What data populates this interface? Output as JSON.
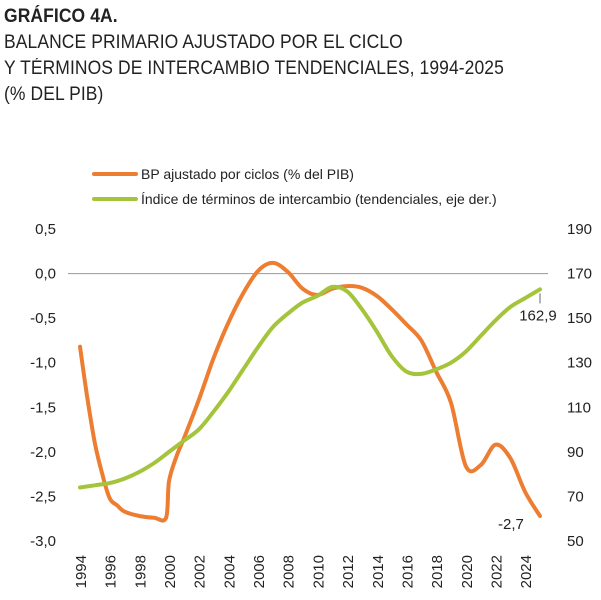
{
  "header": {
    "line1": "GRÁFICO 4A.",
    "line2": "BALANCE PRIMARIO AJUSTADO POR EL CICLO",
    "line3": "Y TÉRMINOS DE INTERCAMBIO TENDENCIALES, 1994-2025",
    "line4": "(% DEL PIB)"
  },
  "chart_data": {
    "type": "line",
    "title": "BALANCE PRIMARIO AJUSTADO POR EL CICLO Y TÉRMINOS DE INTERCAMBIO TENDENCIALES, 1994-2025 (% DEL PIB)",
    "x_ticks": [
      "1994",
      "1996",
      "1998",
      "2000",
      "2002",
      "2004",
      "2006",
      "2008",
      "2010",
      "2012",
      "2014",
      "2016",
      "2018",
      "2020",
      "2022",
      "2024"
    ],
    "y_left": {
      "range": [
        -3.0,
        0.5
      ],
      "ticks": [
        "0,5",
        "0,0",
        "-0,5",
        "-1,0",
        "-1,5",
        "-2,0",
        "-2,5",
        "-3,0"
      ],
      "values": [
        0.5,
        0,
        -0.5,
        -1,
        -1.5,
        -2,
        -2.5,
        -3
      ]
    },
    "y_right": {
      "range": [
        50,
        190
      ],
      "ticks": [
        "190",
        "170",
        "150",
        "130",
        "110",
        "90",
        "70",
        "50"
      ],
      "values": [
        190,
        170,
        150,
        130,
        110,
        90,
        70,
        50
      ]
    },
    "legend_position": "top",
    "grid": false,
    "series": [
      {
        "name": "BP ajustado por ciclos (% del PIB)",
        "axis": "left",
        "color": "#ED7D31",
        "points": [
          [
            1994.0,
            -0.82
          ],
          [
            1994.5,
            -1.4
          ],
          [
            1995.0,
            -1.9
          ],
          [
            1995.5,
            -2.25
          ],
          [
            1996.0,
            -2.52
          ],
          [
            1996.5,
            -2.6
          ],
          [
            1997.0,
            -2.67
          ],
          [
            1998.0,
            -2.72
          ],
          [
            1999.0,
            -2.74
          ],
          [
            1999.8,
            -2.74
          ],
          [
            2000.0,
            -2.33
          ],
          [
            2000.5,
            -2.05
          ],
          [
            2001.0,
            -1.85
          ],
          [
            2002.0,
            -1.42
          ],
          [
            2003.0,
            -0.95
          ],
          [
            2004.0,
            -0.55
          ],
          [
            2005.0,
            -0.22
          ],
          [
            2006.0,
            0.03
          ],
          [
            2007.0,
            0.12
          ],
          [
            2008.0,
            0.02
          ],
          [
            2009.0,
            -0.17
          ],
          [
            2010.0,
            -0.24
          ],
          [
            2011.0,
            -0.17
          ],
          [
            2012.0,
            -0.14
          ],
          [
            2013.0,
            -0.16
          ],
          [
            2014.0,
            -0.25
          ],
          [
            2015.0,
            -0.4
          ],
          [
            2016.0,
            -0.57
          ],
          [
            2017.0,
            -0.75
          ],
          [
            2018.0,
            -1.1
          ],
          [
            2019.0,
            -1.45
          ],
          [
            2020.0,
            -2.16
          ],
          [
            2021.0,
            -2.15
          ],
          [
            2022.0,
            -1.92
          ],
          [
            2023.0,
            -2.07
          ],
          [
            2024.0,
            -2.45
          ],
          [
            2025.0,
            -2.72
          ]
        ]
      },
      {
        "name": "Índice de términos de intercambio (tendenciales, eje der.)",
        "axis": "right",
        "color": "#A4C43C",
        "points": [
          [
            1994,
            74
          ],
          [
            1995,
            75
          ],
          [
            1996,
            76
          ],
          [
            1997,
            78
          ],
          [
            1998,
            81
          ],
          [
            1999,
            85
          ],
          [
            2000,
            90
          ],
          [
            2001,
            95
          ],
          [
            2002,
            100
          ],
          [
            2003,
            108
          ],
          [
            2004,
            117
          ],
          [
            2005,
            127
          ],
          [
            2006,
            137
          ],
          [
            2007,
            146
          ],
          [
            2008,
            152
          ],
          [
            2009,
            157
          ],
          [
            2010,
            160
          ],
          [
            2011,
            164
          ],
          [
            2012,
            162
          ],
          [
            2013,
            154
          ],
          [
            2014,
            144
          ],
          [
            2015,
            133
          ],
          [
            2016,
            126
          ],
          [
            2017,
            125
          ],
          [
            2018,
            127
          ],
          [
            2019,
            130
          ],
          [
            2020,
            135
          ],
          [
            2021,
            142
          ],
          [
            2022,
            149
          ],
          [
            2023,
            155
          ],
          [
            2024,
            159
          ],
          [
            2025,
            162.9
          ]
        ]
      }
    ],
    "annotations": [
      {
        "text": "162,9",
        "series": 1,
        "x": 2025,
        "y": 162.9
      },
      {
        "text": "-2,7",
        "series": 0,
        "x": 2025,
        "y": -2.72
      }
    ]
  }
}
